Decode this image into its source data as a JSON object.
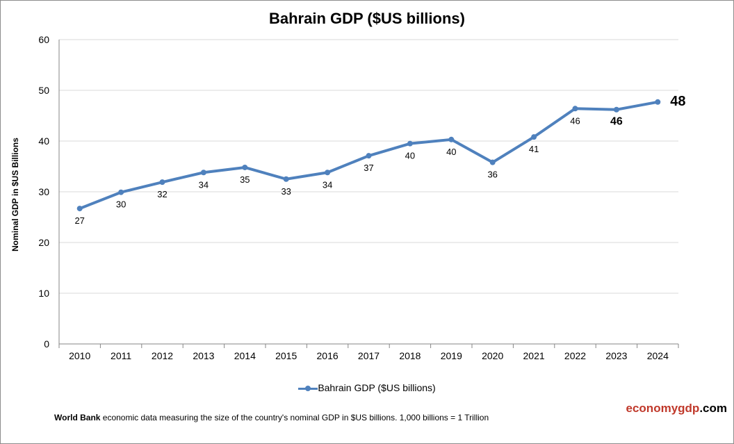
{
  "chart_data": {
    "type": "line",
    "title": "Bahrain GDP ($US billions)",
    "ylabel": "Nominal GDP in $US Billions",
    "xlabel": "",
    "ylim": [
      0,
      60
    ],
    "yticks": [
      0,
      10,
      20,
      30,
      40,
      50,
      60
    ],
    "grid": true,
    "legend_position": "bottom",
    "categories": [
      "2010",
      "2011",
      "2012",
      "2013",
      "2014",
      "2015",
      "2016",
      "2017",
      "2018",
      "2019",
      "2020",
      "2021",
      "2022",
      "2023",
      "2024"
    ],
    "series": [
      {
        "name": "Bahrain GDP ($US billions)",
        "color": "#4f81bd",
        "values": [
          26.7,
          29.9,
          31.9,
          33.8,
          34.8,
          32.5,
          33.8,
          37.1,
          39.5,
          40.3,
          35.8,
          40.8,
          46.4,
          46.2,
          47.7
        ],
        "data_labels": [
          "27",
          "30",
          "32",
          "34",
          "35",
          "33",
          "34",
          "37",
          "40",
          "40",
          "36",
          "41",
          "46",
          "46",
          "48"
        ]
      }
    ]
  },
  "footer": {
    "source_bold": "World Bank",
    "text": " economic data  measuring the size of the country's nominal GDP in $US billions. 1,000 billions = 1 Trillion"
  },
  "brand": {
    "part1": "economygdp",
    "part2": ".com",
    "color1": "#c0392b"
  }
}
